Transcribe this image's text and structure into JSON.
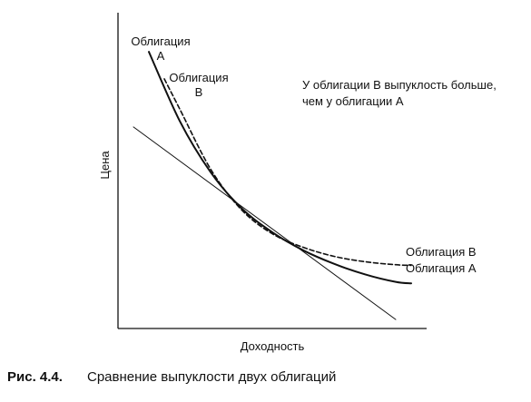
{
  "chart_data": {
    "type": "line",
    "xlabel": "Доходность",
    "ylabel": "Цена",
    "annotation_line1": "У облигации В выпуклость больше,",
    "annotation_line2": "чем у облигации А",
    "series": [
      {
        "name": "Облигация А",
        "label_top_line1": "Облигация",
        "label_top_line2": "А",
        "label_end": "Облигация А",
        "style": "solid",
        "x": [
          2,
          4,
          6,
          8,
          10,
          12,
          14,
          16,
          18,
          19
        ],
        "y": [
          9.2,
          6.9,
          5.2,
          4.0,
          3.2,
          2.6,
          2.15,
          1.8,
          1.55,
          1.5
        ]
      },
      {
        "name": "Облигация В",
        "label_top_line1": "Облигация",
        "label_top_line2": "В",
        "label_end": "Облигация В",
        "style": "dashed",
        "x": [
          3,
          4,
          6,
          8,
          10,
          12,
          14,
          16,
          18,
          19
        ],
        "y": [
          8.3,
          7.3,
          5.3,
          3.95,
          3.15,
          2.7,
          2.4,
          2.22,
          2.12,
          2.1
        ]
      },
      {
        "name": "tangent",
        "style": "thin",
        "x": [
          1,
          18
        ],
        "y": [
          6.7,
          0.3
        ]
      }
    ],
    "xlim": [
      0,
      20
    ],
    "ylim": [
      0,
      10.5
    ],
    "ticks": false,
    "grid": false,
    "colors": {
      "axis": "#111111",
      "line": "#111111"
    }
  },
  "caption": {
    "number": "Рис. 4.4.",
    "text": "Сравнение выпуклости двух облигаций"
  }
}
